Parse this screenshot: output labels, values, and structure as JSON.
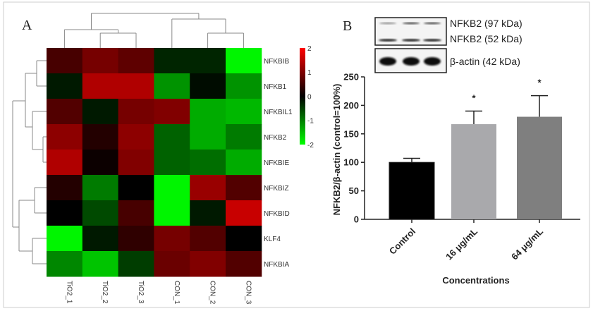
{
  "chart_data": [
    {
      "type": "heatmap",
      "panel_label": "A",
      "columns": [
        "TiO2_1",
        "TiO2_2",
        "TiO2_3",
        "CON_1",
        "CON_2",
        "CON_3"
      ],
      "rows": [
        "NFKBIB",
        "NFKB1",
        "NFKBIL1",
        "NFKB2",
        "NFKBIE",
        "NFKBIZ",
        "NFKBID",
        "KLF4",
        "NFKBIA"
      ],
      "values": [
        [
          0.6,
          1.0,
          0.8,
          -0.3,
          -0.3,
          -2.0
        ],
        [
          -0.2,
          1.5,
          1.5,
          -1.2,
          -0.1,
          -1.2
        ],
        [
          0.7,
          -0.2,
          1.0,
          1.1,
          -1.4,
          -1.5
        ],
        [
          1.2,
          0.3,
          1.2,
          -0.8,
          -1.4,
          -1.0
        ],
        [
          1.5,
          0.1,
          1.1,
          -0.8,
          -0.9,
          -1.4
        ],
        [
          0.3,
          -1.0,
          0.0,
          -2.0,
          1.3,
          0.7
        ],
        [
          0.0,
          -0.6,
          0.6,
          -2.0,
          -0.2,
          1.7
        ],
        [
          -2.0,
          -0.2,
          0.4,
          1.0,
          0.7,
          0.0
        ],
        [
          -1.1,
          -1.6,
          -0.5,
          0.9,
          1.1,
          0.7
        ]
      ],
      "colorbar": {
        "min": -2,
        "max": 2,
        "ticks": [
          "2",
          "1",
          "0",
          "-1",
          "-2"
        ],
        "low_color": "#00ff00",
        "mid_color": "#000000",
        "high_color": "#ff0000"
      }
    },
    {
      "type": "bar",
      "panel_label": "B",
      "categories": [
        "Control",
        "16 μg/mL",
        "64 μg/mL"
      ],
      "values": [
        100,
        167,
        180
      ],
      "errors": [
        7,
        23,
        37
      ],
      "significance": [
        "",
        "*",
        "*"
      ],
      "colors": [
        "#000000",
        "#a9a9ac",
        "#7f7f7f"
      ],
      "xlabel": "Concentrations",
      "ylabel": "NFKB2/β-actin (control=100%)",
      "ylim": [
        0,
        250
      ],
      "yticks": [
        "0",
        "50",
        "100",
        "150",
        "200",
        "250"
      ],
      "blot_labels": [
        "NFKB2 (97 kDa)",
        "NFKB2 (52 kDa)",
        "β-actin (42 kDa)"
      ]
    }
  ]
}
